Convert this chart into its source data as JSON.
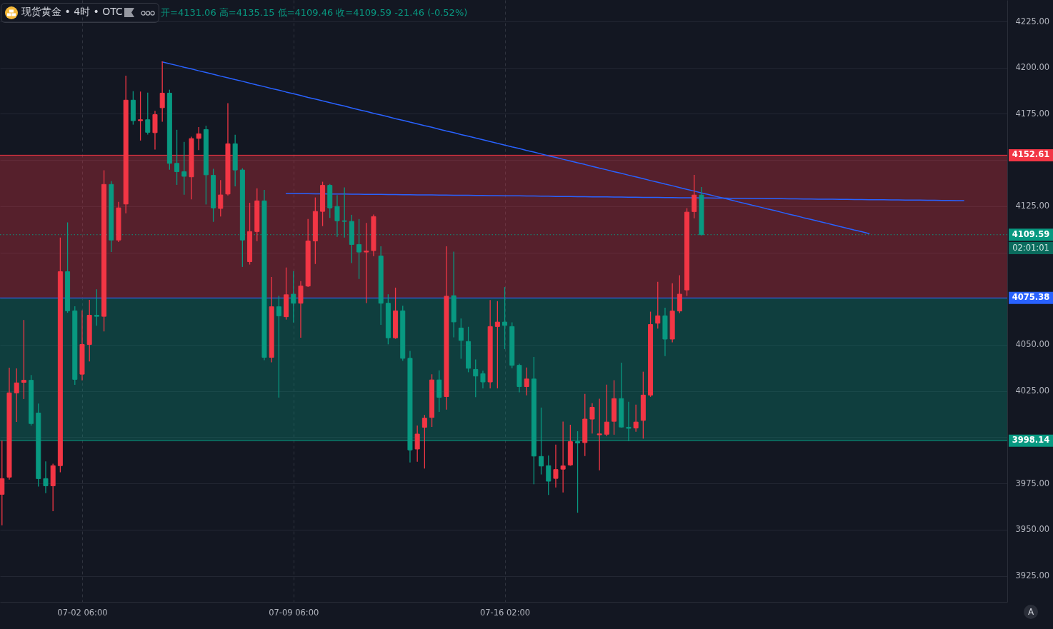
{
  "chart_data": {
    "type": "candlestick",
    "title": "现货黄金 • 4时 • OTC",
    "annotations": [
      "开=4131.06 高=4135.15 低=4109.46 收=4109.59 -21.46 (-0.52%)",
      "A",
      "02:01:01"
    ],
    "categories": [
      null,
      null,
      null,
      null,
      null,
      null,
      null,
      null,
      null,
      null,
      null,
      "07-02 06:00",
      null,
      null,
      null,
      null,
      null,
      null,
      null,
      null,
      null,
      null,
      null,
      null,
      null,
      null,
      null,
      null,
      null,
      null,
      null,
      null,
      null,
      null,
      null,
      null,
      null,
      null,
      null,
      null,
      "07-09 06:00",
      null,
      null,
      null,
      null,
      null,
      null,
      null,
      null,
      null,
      null,
      null,
      null,
      null,
      null,
      null,
      null,
      null,
      null,
      null,
      null,
      null,
      null,
      null,
      null,
      null,
      null,
      null,
      null,
      "07-16 02:00",
      null,
      null,
      null,
      null,
      null,
      null,
      null,
      null,
      null,
      null,
      null,
      null,
      null,
      null,
      null,
      null,
      null,
      null,
      null,
      null,
      null,
      null,
      null,
      null,
      null,
      null,
      null,
      null,
      null,
      null,
      null,
      null,
      null,
      null,
      null,
      null,
      null,
      null,
      null,
      null,
      null,
      null,
      null,
      null,
      null,
      null,
      null,
      null,
      null,
      null,
      null,
      null,
      null,
      null,
      null,
      null,
      null,
      null,
      null,
      null,
      null,
      null,
      null,
      null,
      null,
      null,
      null,
      null
    ],
    "ohlc": [
      [
        3969.1,
        3998.0,
        3952.6,
        3977.6
      ],
      [
        3978.4,
        4037.4,
        3977.3,
        4024.0
      ],
      [
        4024.0,
        4037.0,
        4008.5,
        4029.4
      ],
      [
        4029.7,
        4063.2,
        4020.9,
        4030.8
      ],
      [
        4030.8,
        4033.4,
        4006.6,
        4007.4
      ],
      [
        4013.1,
        4018.0,
        3973.5,
        3977.6
      ],
      [
        3977.6,
        3986.7,
        3970.0,
        3973.7
      ],
      [
        3973.7,
        3985.4,
        3960.2,
        3984.6
      ],
      [
        3984.6,
        4107.8,
        3981.3,
        4089.6
      ],
      [
        4089.6,
        4116.0,
        4067.6,
        4068.4
      ],
      [
        4068.4,
        4070.6,
        4028.6,
        4031.3
      ],
      [
        4034.1,
        4068.4,
        4031.0,
        4050.2
      ],
      [
        4050.2,
        4074.1,
        4041.3,
        4066.0
      ],
      [
        4066.0,
        4079.8,
        4060.6,
        4065.4
      ],
      [
        4065.4,
        4144.2,
        4057.5,
        4136.8
      ],
      [
        4136.8,
        4138.3,
        4100.5,
        4106.7
      ],
      [
        4106.7,
        4127.1,
        4105.9,
        4124.1
      ],
      [
        4126.2,
        4195.4,
        4121.4,
        4182.4
      ],
      [
        4182.4,
        4187.0,
        4169.4,
        4171.3
      ],
      [
        4171.3,
        4186.8,
        4160.8,
        4171.8
      ],
      [
        4171.8,
        4186.2,
        4164.0,
        4165.0
      ],
      [
        4164.8,
        4176.4,
        4155.9,
        4174.6
      ],
      [
        4178.3,
        4203.1,
        4171.0,
        4186.2
      ],
      [
        4186.2,
        4187.8,
        4145.0,
        4148.2
      ],
      [
        4148.2,
        4166.1,
        4136.8,
        4143.7
      ],
      [
        4143.7,
        4159.6,
        4131.5,
        4141.2
      ],
      [
        4140.9,
        4162.4,
        4129.0,
        4161.6
      ],
      [
        4161.7,
        4167.6,
        4155.6,
        4164.2
      ],
      [
        4166.5,
        4168.3,
        4126.2,
        4142.0
      ],
      [
        4141.7,
        4145.0,
        4116.8,
        4124.1
      ],
      [
        4123.8,
        4138.9,
        4119.7,
        4131.1
      ],
      [
        4131.6,
        4180.5,
        4131.1,
        4158.8
      ],
      [
        4158.8,
        4163.4,
        4136.0,
        4144.6
      ],
      [
        4144.6,
        4145.3,
        4092.4,
        4106.7
      ],
      [
        4095.0,
        4126.6,
        4093.7,
        4111.3
      ],
      [
        4111.3,
        4134.4,
        4106.4,
        4127.9
      ],
      [
        4127.9,
        4133.6,
        4041.9,
        4043.2
      ],
      [
        4043.2,
        4086.4,
        4040.8,
        4070.6
      ],
      [
        4070.6,
        4076.3,
        4021.7,
        4065.7
      ],
      [
        4065.2,
        4091.6,
        4063.9,
        4077.1
      ],
      [
        4077.4,
        4089.6,
        4062.3,
        4072.5
      ],
      [
        4072.5,
        4084.2,
        4054.1,
        4081.8
      ],
      [
        4081.8,
        4117.8,
        4081.5,
        4106.2
      ],
      [
        4106.2,
        4129.5,
        4094.0,
        4122.2
      ],
      [
        4122.2,
        4138.0,
        4114.5,
        4136.3
      ],
      [
        4136.3,
        4136.8,
        4118.9,
        4124.1
      ],
      [
        4124.9,
        4130.8,
        4108.7,
        4117.1
      ],
      [
        4117.1,
        4134.9,
        4108.3,
        4116.8
      ],
      [
        4116.8,
        4120.1,
        4094.5,
        4104.3
      ],
      [
        4104.3,
        4117.8,
        4085.9,
        4100.2
      ],
      [
        4100.2,
        4115.7,
        4072.8,
        4100.8
      ],
      [
        4101.0,
        4120.2,
        4098.2,
        4119.4
      ],
      [
        4098.1,
        4103.1,
        4061.1,
        4072.5
      ],
      [
        4072.5,
        4077.1,
        4050.5,
        4053.8
      ],
      [
        4053.8,
        4080.7,
        4053.5,
        4068.4
      ],
      [
        4068.4,
        4070.9,
        4041.6,
        4042.7
      ],
      [
        4042.7,
        4046.5,
        3986.6,
        3993.1
      ],
      [
        3993.6,
        4006.1,
        3987.0,
        4001.7
      ],
      [
        4005.4,
        4011.8,
        3983.3,
        4010.3
      ],
      [
        4010.7,
        4033.8,
        4005.8,
        4031.0
      ],
      [
        4031.0,
        4035.9,
        4013.9,
        4021.6
      ],
      [
        4022.0,
        4103.1,
        4015.2,
        4076.3
      ],
      [
        4076.6,
        4100.2,
        4054.3,
        4062.4
      ],
      [
        4059.1,
        4064.0,
        4042.7,
        4052.4
      ],
      [
        4051.8,
        4059.5,
        4035.4,
        4037.3
      ],
      [
        4036.7,
        4041.8,
        4021.9,
        4033.1
      ],
      [
        4034.4,
        4035.7,
        4026.7,
        4029.9
      ],
      [
        4029.9,
        4074.0,
        4026.7,
        4059.9
      ],
      [
        4059.9,
        4073.4,
        4026.7,
        4062.3
      ],
      [
        4062.3,
        4081.0,
        4047.9,
        4060.5
      ],
      [
        4059.9,
        4061.9,
        4037.6,
        4038.9
      ],
      [
        4038.9,
        4039.5,
        4024.5,
        4027.4
      ],
      [
        4027.4,
        4037.5,
        4022.9,
        4031.5
      ],
      [
        4031.5,
        4043.2,
        3974.8,
        3989.8
      ],
      [
        3989.6,
        4015.8,
        3980.1,
        3984.4
      ],
      [
        3984.6,
        3989.9,
        3969.0,
        3976.2
      ],
      [
        3977.7,
        3995.7,
        3973.1,
        3982.5
      ],
      [
        3982.7,
        4008.2,
        3970.4,
        3984.5
      ],
      [
        3985.0,
        4006.5,
        3984.8,
        3997.6
      ],
      [
        3997.6,
        4003.0,
        3959.4,
        3996.9
      ],
      [
        3997.1,
        4023.2,
        3990.1,
        4009.8
      ],
      [
        4009.8,
        4018.2,
        4002.2,
        4016.2
      ],
      [
        4001.3,
        4020.6,
        3982.3,
        4001.8
      ],
      [
        4001.6,
        4028.2,
        4000.8,
        4008.2
      ],
      [
        4008.6,
        4030.6,
        4001.6,
        4020.9
      ],
      [
        4020.9,
        4040.1,
        4005.4,
        4005.5
      ],
      [
        4005.4,
        4018.9,
        3998.2,
        4004.8
      ],
      [
        4005.0,
        4017.4,
        4003.2,
        4008.2
      ],
      [
        4009.1,
        4035.2,
        3999.5,
        4022.8
      ],
      [
        4022.8,
        4067.7,
        4022.1,
        4061.0
      ],
      [
        4061.7,
        4083.8,
        4059.0,
        4065.7
      ],
      [
        4065.7,
        4069.8,
        4044.2,
        4053.1
      ],
      [
        4053.1,
        4083.1,
        4051.6,
        4068.3
      ],
      [
        4068.3,
        4087.4,
        4067.4,
        4077.4
      ],
      [
        4079.7,
        4123.7,
        4076.7,
        4121.8
      ],
      [
        4122.1,
        4141.7,
        4118.7,
        4131.05
      ],
      [
        4131.06,
        4135.15,
        4109.46,
        4109.59
      ],
      null,
      null,
      null,
      null,
      null,
      null,
      null,
      null,
      null,
      null,
      null,
      null,
      null,
      null,
      null,
      null,
      null,
      null,
      null,
      null,
      null,
      null,
      null,
      null,
      null,
      null,
      null,
      null,
      null,
      null,
      null,
      null,
      null,
      null,
      null,
      null,
      null,
      null,
      null,
      null,
      null
    ],
    "colors": [
      "#f23645",
      "#f23645",
      "#f23645",
      "#f23645",
      "#089981",
      "#089981",
      "#089981",
      "#f23645",
      "#f23645",
      "#089981",
      "#089981",
      "#f23645",
      "#f23645",
      "#089981",
      "#f23645",
      "#089981",
      "#f23645",
      "#f23645",
      "#089981",
      "#f23645",
      "#089981",
      "#f23645",
      "#f23645",
      "#089981",
      "#089981",
      "#089981",
      "#f23645",
      "#f23645",
      "#089981",
      "#089981",
      "#f23645",
      "#f23645",
      "#089981",
      "#089981",
      "#f23645",
      "#f23645",
      "#089981",
      "#f23645",
      "#089981",
      "#f23645",
      "#089981",
      "#f23645",
      "#f23645",
      "#f23645",
      "#f23645",
      "#089981",
      "#089981",
      "#089981",
      "#089981",
      "#089981",
      "#f23645",
      "#f23645",
      "#089981",
      "#089981",
      "#f23645",
      "#089981",
      "#089981",
      "#f23645",
      "#f23645",
      "#f23645",
      "#089981",
      "#f23645",
      "#089981",
      "#089981",
      "#089981",
      "#089981",
      "#089981",
      "#f23645",
      "#f23645",
      "#089981",
      "#089981",
      "#089981",
      "#f23645",
      "#089981",
      "#089981",
      "#089981",
      "#f23645",
      "#f23645",
      "#f23645",
      "#089981",
      "#f23645",
      "#f23645",
      "#f23645",
      "#f23645",
      "#f23645",
      "#089981",
      "#089981",
      "#f23645",
      "#f23645",
      "#f23645",
      "#f23645",
      "#089981",
      "#f23645",
      "#f23645",
      "#f23645",
      "#f23645",
      "#089981",
      null,
      null,
      null,
      null,
      null,
      null,
      null,
      null,
      null,
      null,
      null,
      null,
      null,
      null,
      null,
      null,
      null,
      null,
      null,
      null,
      null,
      null,
      null,
      null,
      null,
      null,
      null,
      null,
      null,
      null,
      null,
      null,
      null,
      null,
      null,
      null,
      null,
      null,
      null,
      null,
      null
    ],
    "series": [
      {
        "type": "line",
        "color": "#2962ff",
        "values": [
          null,
          null,
          null,
          null,
          null,
          null,
          null,
          null,
          null,
          null,
          null,
          null,
          null,
          null,
          null,
          null,
          null,
          null,
          null,
          null,
          null,
          null,
          4203.1,
          4202.1,
          4201.2,
          4200.2,
          4199.3,
          4198.3,
          4197.4,
          4196.4,
          4195.4,
          4194.5,
          4193.5,
          4192.6,
          4191.6,
          4190.6,
          4189.7,
          4188.7,
          4187.8,
          4186.8,
          4185.9,
          4184.9,
          4183.9,
          4183.0,
          4182.0,
          4181.1,
          4180.1,
          4179.2,
          4178.2,
          4177.2,
          4176.3,
          4175.3,
          4174.4,
          4173.4,
          4172.4,
          4171.5,
          4170.5,
          4169.6,
          4168.6,
          4167.7,
          4166.7,
          4165.7,
          4164.8,
          4163.8,
          4162.9,
          4161.9,
          4161.0,
          4160.0,
          4159.0,
          4158.1,
          4157.1,
          4156.2,
          4155.2,
          4154.3,
          4153.3,
          4152.3,
          4151.4,
          4150.4,
          4149.5,
          4148.5,
          4147.6,
          4146.6,
          4145.6,
          4144.7,
          4143.7,
          4142.8,
          4141.8,
          4140.9,
          4139.9,
          4138.9,
          4138.0,
          4137.0,
          4136.1,
          4135.1,
          4134.1,
          4133.2,
          4132.2,
          4131.3,
          4130.3,
          4129.4,
          4128.4,
          4127.4,
          4126.5,
          4125.5,
          4124.6,
          4123.6,
          4122.7,
          4121.7,
          4120.7,
          4119.8,
          4118.8,
          4117.9,
          4116.9,
          4116.0,
          4115.0,
          4114.0,
          4113.1,
          4112.1,
          4111.2,
          4110.2,
          null,
          null,
          null,
          null,
          null,
          null,
          null,
          null,
          null,
          null,
          null,
          null,
          null,
          null,
          null,
          null,
          null,
          null
        ]
      },
      {
        "type": "line",
        "color": "#2962ff",
        "values": [
          null,
          null,
          null,
          null,
          null,
          null,
          null,
          null,
          null,
          null,
          null,
          null,
          null,
          null,
          null,
          null,
          null,
          null,
          null,
          null,
          null,
          null,
          null,
          null,
          null,
          null,
          null,
          null,
          null,
          null,
          null,
          null,
          null,
          null,
          null,
          null,
          null,
          null,
          null,
          4131.9,
          4131.9,
          4131.8,
          4131.8,
          4131.7,
          4131.7,
          4131.6,
          4131.6,
          4131.6,
          4131.5,
          4131.5,
          4131.4,
          4131.4,
          4131.4,
          4131.3,
          4131.3,
          4131.2,
          4131.2,
          4131.1,
          4131.1,
          4131.1,
          4131.0,
          4131.0,
          4130.9,
          4130.9,
          4130.9,
          4130.8,
          4130.8,
          4130.7,
          4130.7,
          4130.6,
          4130.6,
          4130.6,
          4130.5,
          4130.5,
          4130.4,
          4130.4,
          4130.3,
          4130.3,
          4130.3,
          4130.2,
          4130.2,
          4130.1,
          4130.1,
          4130.1,
          4130.0,
          4130.0,
          4129.9,
          4129.9,
          4129.8,
          4129.8,
          4129.8,
          4129.7,
          4129.7,
          4129.6,
          4129.6,
          4129.6,
          4129.5,
          4129.5,
          4129.4,
          4129.4,
          4129.3,
          4129.3,
          4129.3,
          4129.2,
          4129.2,
          4129.1,
          4129.1,
          4129.1,
          4129.0,
          4129.0,
          4128.9,
          4128.9,
          4128.8,
          4128.8,
          4128.8,
          4128.7,
          4128.7,
          4128.6,
          4128.6,
          4128.5,
          4128.5,
          4128.5,
          4128.4,
          4128.4,
          4128.3,
          4128.3,
          4128.3,
          4128.2,
          4128.2,
          4128.1,
          4128.1,
          4128.0,
          4128.0,
          null,
          null,
          null,
          null,
          null
        ]
      }
    ],
    "ylim": [
      3910.9,
      4236.6
    ],
    "yticks": [
      {
        "value": 3925,
        "label": "3925.00"
      },
      {
        "value": 3950,
        "label": "3950.00"
      },
      {
        "value": 3975,
        "label": "3975.00"
      },
      {
        "value": 4000,
        "label": null
      },
      {
        "value": 4025,
        "label": "4025.00"
      },
      {
        "value": 4050,
        "label": "4050.00"
      },
      {
        "value": 4075,
        "label": null
      },
      {
        "value": 4100,
        "label": null
      },
      {
        "value": 4125,
        "label": "4125.00"
      },
      {
        "value": 4150,
        "label": null
      },
      {
        "value": 4175,
        "label": "4175.00"
      },
      {
        "value": 4200,
        "label": "4200.00"
      },
      {
        "value": 4225,
        "label": "4225.00"
      }
    ],
    "bands": [
      {
        "axis": "y",
        "from": 4075.38,
        "to": 4152.61,
        "color": "#f23645"
      },
      {
        "axis": "y",
        "from": 3998.14,
        "to": 4075.38,
        "color": "#089981"
      }
    ],
    "ref_lines": [
      {
        "axis": "y",
        "value": 4152.61,
        "label": "4152.61",
        "color": "#f23645"
      },
      {
        "axis": "y",
        "value": 4109.59,
        "label": "4109.59",
        "color": "#089981",
        "line_style": "dotted"
      },
      {
        "axis": "y",
        "value": 4075.38,
        "label": "4075.38",
        "color": "#2962ff"
      },
      {
        "axis": "y",
        "value": 3998.14,
        "label": "3998.14",
        "color": "#089981"
      }
    ],
    "grid": true
  }
}
